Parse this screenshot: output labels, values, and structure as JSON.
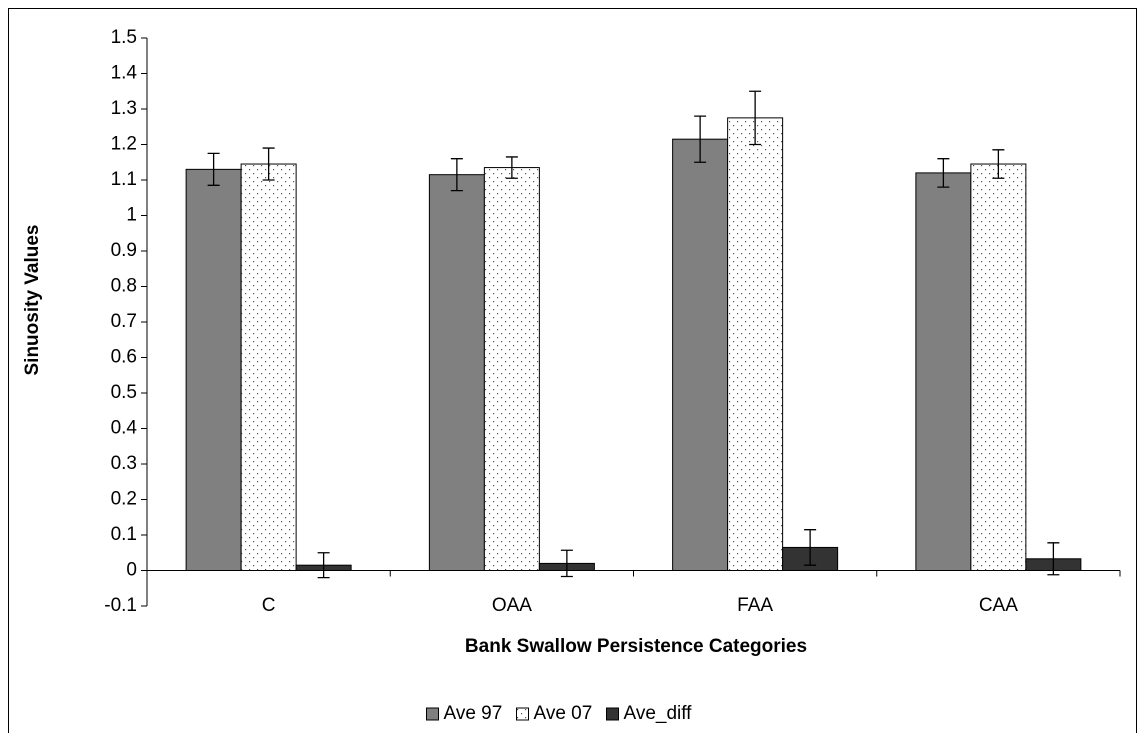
{
  "chart_data": {
    "type": "bar",
    "x_label": "Bank Swallow Persistence Categories",
    "y_label": "Sinuosity Values",
    "categories": [
      "C",
      "OAA",
      "FAA",
      "CAA"
    ],
    "series": [
      {
        "name": "Ave 97",
        "color": "#808080",
        "values": [
          1.13,
          1.115,
          1.215,
          1.12
        ],
        "errors": [
          0.045,
          0.045,
          0.065,
          0.04
        ]
      },
      {
        "name": "Ave 07",
        "color": "#ffffff",
        "pattern": "dots",
        "values": [
          1.145,
          1.135,
          1.275,
          1.145
        ],
        "errors": [
          0.045,
          0.03,
          0.075,
          0.04
        ]
      },
      {
        "name": "Ave_diff",
        "color": "#333333",
        "values": [
          0.015,
          0.02,
          0.065,
          0.033
        ],
        "errors": [
          0.035,
          0.037,
          0.05,
          0.045
        ]
      }
    ],
    "ylim": [
      -0.1,
      1.5
    ],
    "yticks": [
      -0.1,
      0,
      0.1,
      0.2,
      0.3,
      0.4,
      0.5,
      0.6,
      0.7,
      0.8,
      0.9,
      1,
      1.1,
      1.2,
      1.3,
      1.4,
      1.5
    ],
    "grid": false,
    "legend": "bottom"
  }
}
